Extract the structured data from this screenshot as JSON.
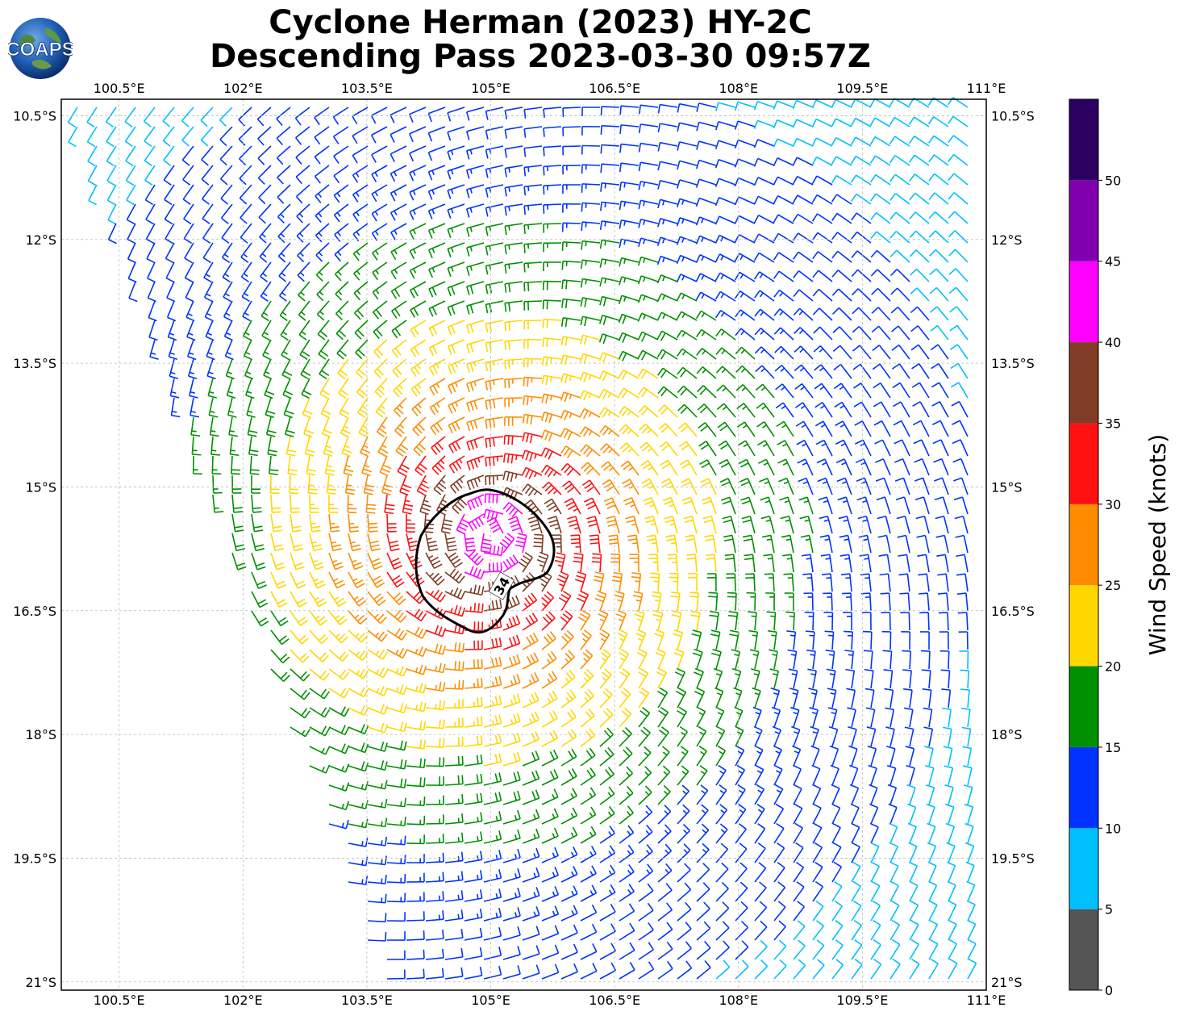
{
  "title": {
    "line1": "Cyclone Herman (2023) HY-2C",
    "line2": "Descending Pass 2023-03-30 09:57Z"
  },
  "logo": {
    "text": "COAPS",
    "icon": "globe-logo-icon"
  },
  "map": {
    "type": "wind-barb-map",
    "lon_ticks": [
      "100.5°E",
      "102°E",
      "103.5°E",
      "105°E",
      "106.5°E",
      "108°E",
      "109.5°E",
      "111°E"
    ],
    "lat_ticks": [
      "10.5°S",
      "12°S",
      "13.5°S",
      "15°S",
      "16.5°S",
      "18°S",
      "19.5°S",
      "21°S"
    ],
    "lon_range": [
      99.8,
      111.0
    ],
    "lat_range": [
      -10.3,
      -21.1
    ],
    "grid": true,
    "storm_center": {
      "lon": 105.0,
      "lat": -15.6
    },
    "contour": {
      "label": "34",
      "units": "knots"
    },
    "colors": {
      "0-5": "#555555",
      "5-10": "#00bfff",
      "10-15": "#0033ff",
      "15-20": "#009000",
      "20-25": "#ffd700",
      "25-30": "#ff8c00",
      "30-35": "#ff1010",
      "35-40": "#803c24",
      "40-45": "#ff00ff",
      "45-50": "#8000b0",
      "50+": "#2c0060"
    }
  },
  "colorbar": {
    "title": "Wind Speed (knots)",
    "ticks": [
      "0",
      "5",
      "10",
      "15",
      "20",
      "25",
      "30",
      "35",
      "40",
      "45",
      "50"
    ],
    "segments": [
      "#555555",
      "#00bfff",
      "#0033ff",
      "#009000",
      "#ffd700",
      "#ff8c00",
      "#ff1010",
      "#803c24",
      "#ff00ff",
      "#8000b0",
      "#2c0060"
    ]
  }
}
